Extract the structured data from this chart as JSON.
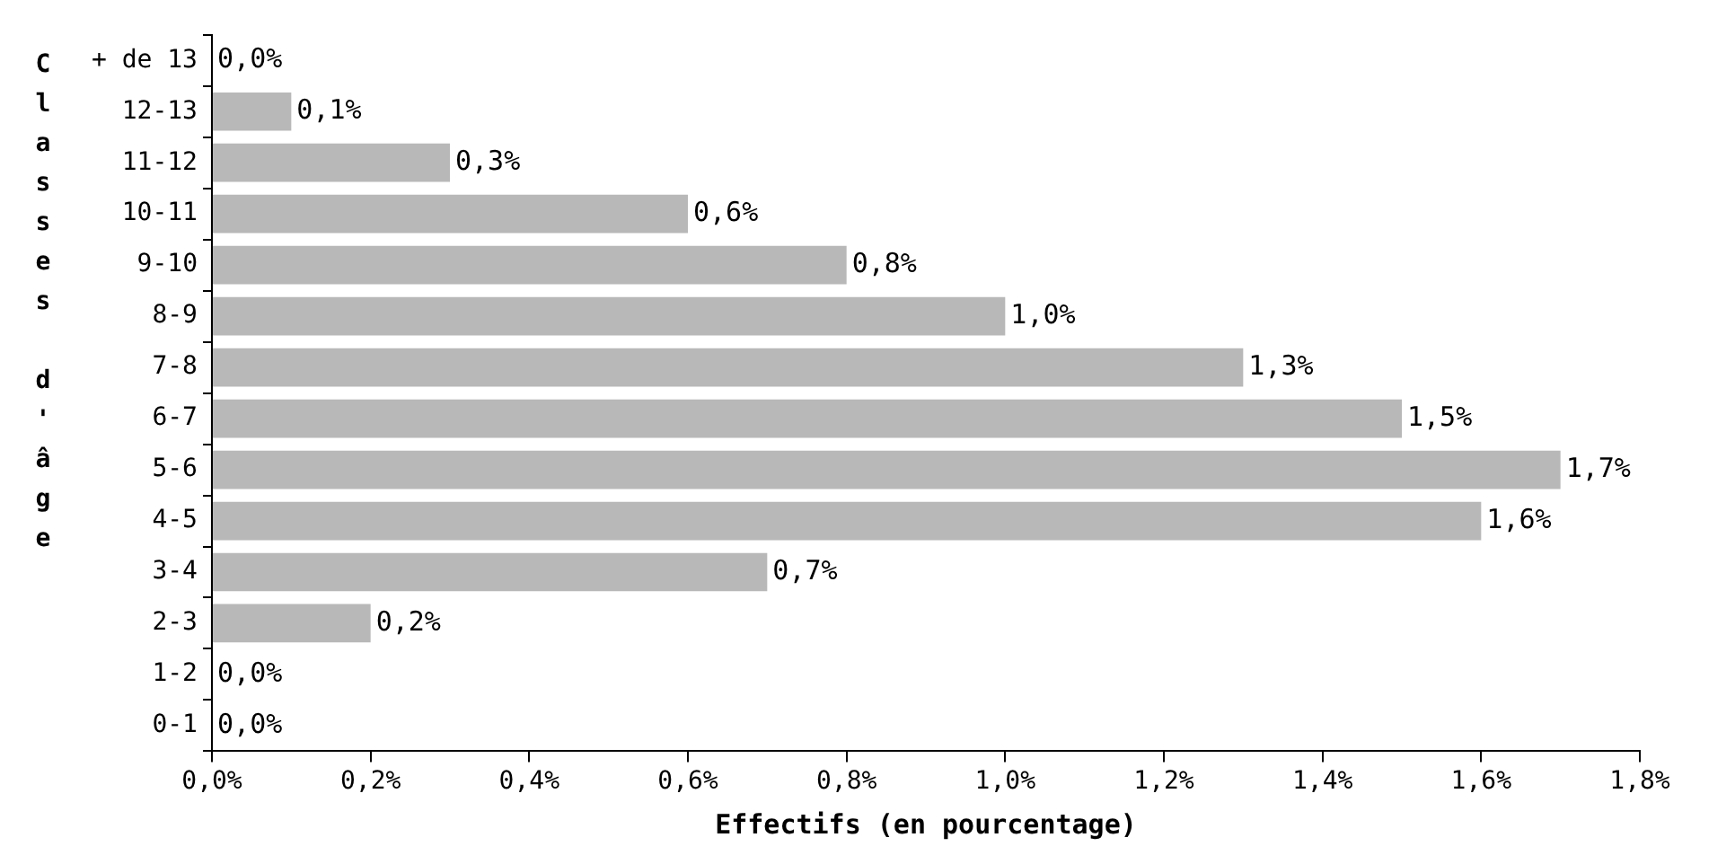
{
  "chart_data": {
    "type": "bar",
    "orientation": "horizontal",
    "xlabel": "Effectifs (en pourcentage)",
    "ylabel": "Classes d'âge",
    "categories": [
      "+ de 13",
      "12-13",
      "11-12",
      "10-11",
      "9-10",
      "8-9",
      "7-8",
      "6-7",
      "5-6",
      "4-5",
      "3-4",
      "2-3",
      "1-2",
      "0-1"
    ],
    "values": [
      0.0,
      0.1,
      0.3,
      0.6,
      0.8,
      1.0,
      1.3,
      1.5,
      1.7,
      1.6,
      0.7,
      0.2,
      0.0,
      0.0
    ],
    "value_labels": [
      "0,0%",
      "0,1%",
      "0,3%",
      "0,6%",
      "0,8%",
      "1,0%",
      "1,3%",
      "1,5%",
      "1,7%",
      "1,6%",
      "0,7%",
      "0,2%",
      "0,0%",
      "0,0%"
    ],
    "color": "#b8b8b8",
    "xlim": [
      0,
      1.8
    ],
    "xticks": [
      {
        "value": 0,
        "label": "0,0%"
      },
      {
        "value": 0.2,
        "label": "0,2%"
      },
      {
        "value": 0.4,
        "label": "0,4%"
      },
      {
        "value": 0.6,
        "label": "0,6%"
      },
      {
        "value": 0.8,
        "label": "0,8%"
      },
      {
        "value": 1.0,
        "label": "1,0%"
      },
      {
        "value": 1.2,
        "label": "1,2%"
      },
      {
        "value": 1.4,
        "label": "1,4%"
      },
      {
        "value": 1.6,
        "label": "1,6%"
      },
      {
        "value": 1.8,
        "label": "1,8%"
      }
    ],
    "grid": false,
    "legend": false
  }
}
